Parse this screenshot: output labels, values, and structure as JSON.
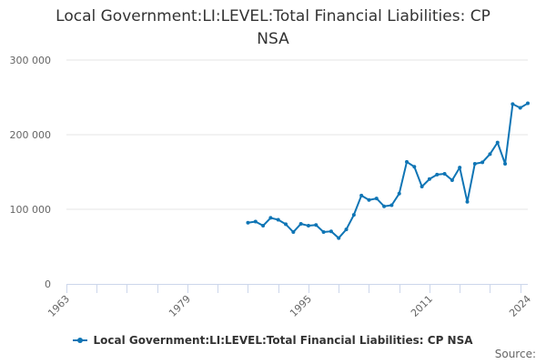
{
  "chart_data": {
    "type": "line",
    "title": "Local Government:LI:LEVEL:Total Financial Liabilities: CP NSA",
    "title_lines": [
      "Local Government:LI:LEVEL:Total Financial Liabilities: CP",
      "NSA"
    ],
    "xlabel": "",
    "ylabel": "",
    "x_ticks": [
      1963,
      1979,
      1995,
      2011,
      2024
    ],
    "y_ticks": [
      0,
      100000,
      200000,
      300000
    ],
    "y_tick_labels": [
      "0",
      "100 000",
      "200 000",
      "300 000"
    ],
    "xlim": [
      1963,
      2024
    ],
    "ylim": [
      0,
      300000
    ],
    "grid": "horizontal",
    "legend_position": "bottom",
    "color": "#0f75b5",
    "series": [
      {
        "name": "Local Government:LI:LEVEL:Total Financial Liabilities: CP NSA",
        "x": [
          1987,
          1988,
          1989,
          1990,
          1991,
          1992,
          1993,
          1994,
          1995,
          1996,
          1997,
          1998,
          1999,
          2000,
          2001,
          2002,
          2003,
          2004,
          2005,
          2006,
          2007,
          2008,
          2009,
          2010,
          2011,
          2012,
          2013,
          2014,
          2015,
          2016,
          2017,
          2018,
          2019,
          2020,
          2021,
          2022,
          2023,
          2024
        ],
        "values": [
          82000,
          83500,
          78000,
          88500,
          86000,
          80000,
          69500,
          80500,
          78000,
          79000,
          69500,
          70500,
          61500,
          73000,
          92500,
          118500,
          112500,
          114500,
          104000,
          105500,
          121000,
          163500,
          157000,
          130500,
          140500,
          146500,
          147500,
          139000,
          156000,
          110000,
          161000,
          163000,
          174000,
          189500,
          161000,
          241000,
          236000,
          242000
        ]
      }
    ]
  },
  "source_label": "Source:"
}
